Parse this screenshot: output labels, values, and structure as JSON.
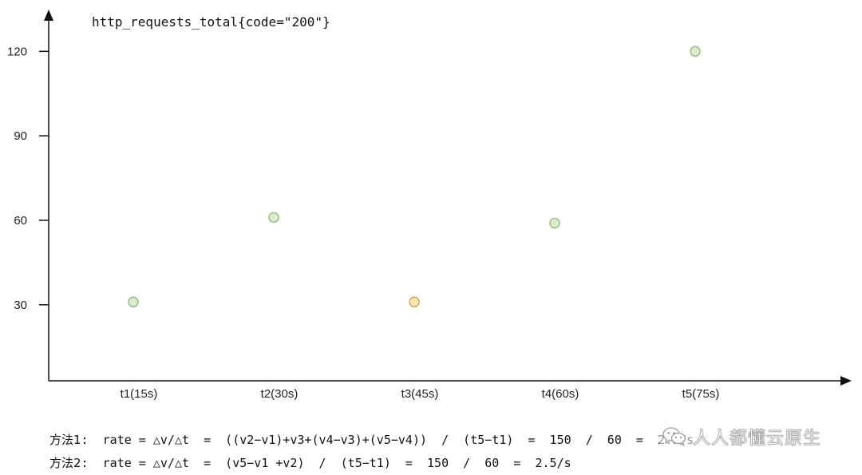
{
  "chart_data": {
    "type": "scatter",
    "title": "http_requests_total{code=\"200\"}",
    "xlabel": "",
    "ylabel": "",
    "categories": [
      "t1(15s)",
      "t2(30s)",
      "t3(45s)",
      "t4(60s)",
      "t5(75s)"
    ],
    "series": [
      {
        "values": [
          31,
          61,
          31,
          59,
          120
        ],
        "point_colors": [
          "#d8ecd0",
          "#d8ecd0",
          "#fbe6b5",
          "#d8ecd0",
          "#d8ecd0"
        ],
        "point_strokes": [
          "#8cbf78",
          "#8cbf78",
          "#d9a63a",
          "#8cbf78",
          "#8cbf78"
        ]
      }
    ],
    "yticks": [
      30,
      60,
      90,
      120
    ],
    "ylim": [
      3,
      132
    ],
    "grid": false,
    "legend": "none"
  },
  "formulas": {
    "method1_label": "方法1",
    "method1_text": ":  rate = △v/△t  =  ((v2−v1)+v3+(v4−v3)+(v5−v4))  /  (t5−t1)  =  150  /  60  =  2.5/s",
    "method2_label": "方法2",
    "method2_text": ":  rate = △v/△t  =  (v5−v1 +v2)  /  (t5−t1)  =  150  /  60  =  2.5/s"
  },
  "watermark": {
    "icon": "wechat-icon",
    "text": "人人都懂云原生"
  },
  "colors": {
    "axis": "#111111",
    "normal_point_fill": "#d8ecd0",
    "normal_point_stroke": "#8cbf78",
    "highlight_point_fill": "#fbe6b5",
    "highlight_point_stroke": "#d9a63a"
  }
}
